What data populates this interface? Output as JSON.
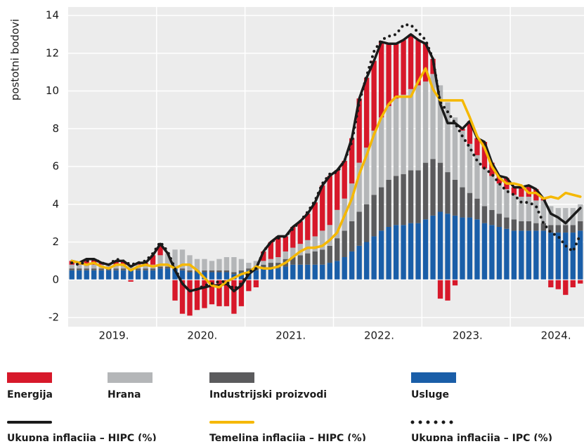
{
  "chart_data": {
    "type": "combo",
    "y_label": "postotni bodovi",
    "categories": [
      null,
      null,
      null,
      null,
      null,
      null,
      "2019.",
      null,
      null,
      null,
      null,
      null,
      null,
      null,
      null,
      null,
      null,
      null,
      "2020.",
      null,
      null,
      null,
      null,
      null,
      null,
      null,
      null,
      null,
      null,
      null,
      "2021.",
      null,
      null,
      null,
      null,
      null,
      null,
      null,
      null,
      null,
      null,
      null,
      "2022.",
      null,
      null,
      null,
      null,
      null,
      null,
      null,
      null,
      null,
      null,
      null,
      "2023.",
      null,
      null,
      null,
      null,
      null,
      null,
      null,
      null,
      null,
      null,
      null,
      "2024.",
      null,
      null,
      null
    ],
    "ylim": [
      -2,
      14
    ],
    "yticks": [
      -2,
      0,
      2,
      4,
      6,
      8,
      10,
      12,
      14
    ],
    "grid": true,
    "series": [
      {
        "name": "Energija",
        "type": "bar",
        "color": "#d7182a",
        "values": [
          0.2,
          0.1,
          0.3,
          0.3,
          0.1,
          0,
          0.2,
          0.2,
          -0.1,
          0.1,
          0.1,
          0.5,
          0.6,
          0,
          -1.1,
          -1.8,
          -1.9,
          -1.6,
          -1.5,
          -1.3,
          -1.4,
          -1.4,
          -1.8,
          -1.4,
          -0.6,
          -0.4,
          0.5,
          0.9,
          1.1,
          0.8,
          1.1,
          1.2,
          1.4,
          1.8,
          2.4,
          2.6,
          2.1,
          2.0,
          2.4,
          3.4,
          3.7,
          3.7,
          4.0,
          3.3,
          2.9,
          2.9,
          2.9,
          2.4,
          2.0,
          0.8,
          -1.0,
          -1.1,
          -0.3,
          0.1,
          1.2,
          0.9,
          1.4,
          0.7,
          0.4,
          0.6,
          0.4,
          0.5,
          0.6,
          0.6,
          0.1,
          -0.4,
          -0.5,
          -0.8,
          -0.4,
          -0.2
        ]
      },
      {
        "name": "Hrana",
        "type": "bar",
        "color": "#b4b6b8",
        "values": [
          0.2,
          0.2,
          0.2,
          0.2,
          0.2,
          0.2,
          0.2,
          0.2,
          0.2,
          0.2,
          0.2,
          0.2,
          0.6,
          0.7,
          0.9,
          1.0,
          0.8,
          0.6,
          0.6,
          0.5,
          0.6,
          0.7,
          0.8,
          0.6,
          0.3,
          0.3,
          0.2,
          0.2,
          0.3,
          0.4,
          0.5,
          0.6,
          0.7,
          0.8,
          1.0,
          1.1,
          1.5,
          1.7,
          2.0,
          2.6,
          3.0,
          3.4,
          3.7,
          3.9,
          4.1,
          4.2,
          4.3,
          4.5,
          4.3,
          4.5,
          4.1,
          3.7,
          3.3,
          3.0,
          2.6,
          2.3,
          2.0,
          1.8,
          1.6,
          1.5,
          1.3,
          1.3,
          1.3,
          1.2,
          1.2,
          1.0,
          0.9,
          0.9,
          0.9,
          0.9
        ]
      },
      {
        "name": "Industrijski proizvodi",
        "type": "bar",
        "color": "#5b5b5d",
        "values": [
          0.1,
          0.1,
          0.1,
          0.1,
          0.1,
          0.1,
          0.1,
          0.1,
          0.1,
          0.1,
          0.1,
          0.1,
          0.1,
          0.1,
          0.1,
          0.1,
          0.1,
          0.1,
          0.1,
          0.1,
          0.1,
          0.1,
          0.1,
          0.1,
          0.1,
          0.2,
          0.2,
          0.3,
          0.3,
          0.4,
          0.4,
          0.5,
          0.6,
          0.7,
          0.8,
          0.9,
          1.2,
          1.4,
          1.6,
          1.8,
          2.0,
          2.2,
          2.3,
          2.5,
          2.6,
          2.7,
          2.8,
          2.8,
          3.0,
          3.0,
          2.6,
          2.2,
          1.9,
          1.6,
          1.3,
          1.1,
          0.9,
          0.8,
          0.7,
          0.6,
          0.6,
          0.5,
          0.5,
          0.4,
          0.4,
          0.4,
          0.4,
          0.4,
          0.4,
          0.5
        ]
      },
      {
        "name": "Usluge",
        "type": "bar",
        "color": "#1a5ea8",
        "values": [
          0.5,
          0.5,
          0.5,
          0.5,
          0.5,
          0.5,
          0.5,
          0.5,
          0.5,
          0.5,
          0.5,
          0.5,
          0.6,
          0.6,
          0.6,
          0.5,
          0.4,
          0.4,
          0.4,
          0.4,
          0.4,
          0.4,
          0.3,
          0.4,
          0.5,
          0.5,
          0.6,
          0.6,
          0.6,
          0.7,
          0.8,
          0.8,
          0.8,
          0.8,
          0.8,
          0.9,
          1.0,
          1.2,
          1.5,
          1.8,
          2.0,
          2.3,
          2.6,
          2.8,
          2.9,
          2.9,
          3.0,
          3.0,
          3.2,
          3.4,
          3.6,
          3.5,
          3.4,
          3.3,
          3.3,
          3.2,
          3.0,
          2.9,
          2.8,
          2.7,
          2.6,
          2.6,
          2.6,
          2.6,
          2.6,
          2.5,
          2.5,
          2.5,
          2.5,
          2.6
        ]
      },
      {
        "name": "Ukupna inflacija – HIPC (%)",
        "type": "line",
        "style": "solid",
        "color": "#1a1a1a",
        "values": [
          1.0,
          0.9,
          1.1,
          1.1,
          0.9,
          0.8,
          1.0,
          1.0,
          0.7,
          0.9,
          0.9,
          1.3,
          1.9,
          1.4,
          0.5,
          -0.2,
          -0.6,
          -0.5,
          -0.4,
          -0.3,
          -0.3,
          -0.2,
          -0.6,
          -0.3,
          0.3,
          0.6,
          1.5,
          2.0,
          2.3,
          2.3,
          2.8,
          3.1,
          3.5,
          4.1,
          5.0,
          5.5,
          5.8,
          6.3,
          7.5,
          9.6,
          10.7,
          11.6,
          12.6,
          12.5,
          12.5,
          12.7,
          13.0,
          12.7,
          12.5,
          11.7,
          9.3,
          8.3,
          8.3,
          8.0,
          8.4,
          7.5,
          7.3,
          6.2,
          5.5,
          5.4,
          4.9,
          4.9,
          5.0,
          4.8,
          4.3,
          3.5,
          3.3,
          3.0,
          3.4,
          3.8
        ]
      },
      {
        "name": "Temeljna inflacija – HIPC (%)",
        "type": "line",
        "style": "solid",
        "color": "#f5b800",
        "values": [
          1.0,
          0.9,
          0.8,
          0.9,
          0.7,
          0.6,
          0.8,
          0.8,
          0.5,
          0.7,
          0.8,
          0.7,
          0.8,
          0.8,
          0.6,
          0.8,
          0.8,
          0.5,
          0.1,
          -0.3,
          -0.4,
          -0.1,
          0.1,
          0.3,
          0.4,
          0.7,
          0.6,
          0.6,
          0.7,
          0.9,
          1.2,
          1.5,
          1.7,
          1.7,
          1.8,
          2.1,
          2.5,
          3.4,
          4.3,
          5.6,
          6.6,
          7.7,
          8.6,
          9.3,
          9.7,
          9.7,
          9.7,
          10.5,
          11.2,
          10.1,
          9.5,
          9.5,
          9.5,
          9.5,
          8.6,
          7.6,
          7.0,
          6.0,
          5.4,
          5.1,
          5.1,
          5.0,
          4.6,
          4.6,
          4.3,
          4.4,
          4.3,
          4.6,
          4.5,
          4.4
        ]
      },
      {
        "name": "Ukupna inflacija – IPC (%)",
        "type": "line",
        "style": "dotted",
        "color": "#1a1a1a",
        "values": [
          0.9,
          0.8,
          1.0,
          1.1,
          0.9,
          0.8,
          1.1,
          1.0,
          0.8,
          0.9,
          1.0,
          1.4,
          2.0,
          1.5,
          0.6,
          -0.2,
          -0.6,
          -0.5,
          -0.3,
          -0.2,
          -0.1,
          -0.1,
          -0.5,
          -0.2,
          0.4,
          0.6,
          1.5,
          2.0,
          2.2,
          2.3,
          2.7,
          3.1,
          3.6,
          4.2,
          5.1,
          5.6,
          5.7,
          6.3,
          7.3,
          9.4,
          10.8,
          12.1,
          12.7,
          12.9,
          13.0,
          13.5,
          13.5,
          13.1,
          12.7,
          11.7,
          9.4,
          8.9,
          8.3,
          7.6,
          7.0,
          6.3,
          5.9,
          5.6,
          5.1,
          4.7,
          4.5,
          4.1,
          4.1,
          3.9,
          3.0,
          2.5,
          2.3,
          1.8,
          1.5,
          2.4
        ]
      }
    ]
  }
}
